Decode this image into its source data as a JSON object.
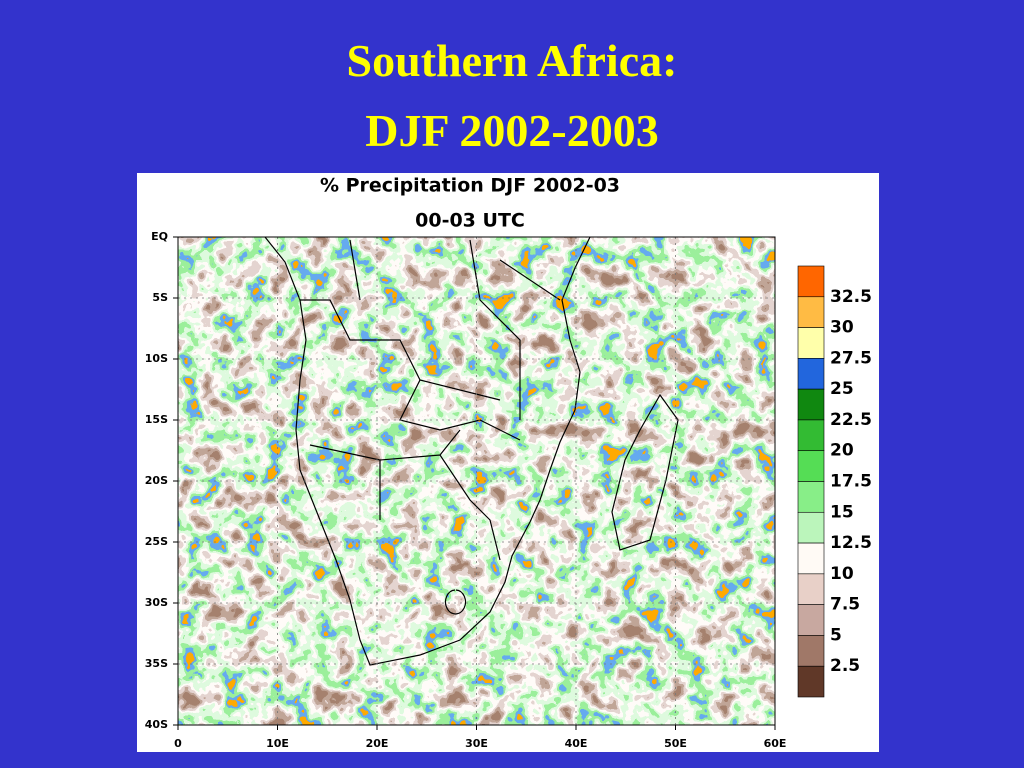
{
  "title": {
    "line1": "Southern Africa:",
    "line2": "DJF 2002-2003"
  },
  "map": {
    "title_lines": [
      "% Precipitation DJF 2002-03",
      "00-03 UTC"
    ],
    "lat_labels": [
      "EQ",
      "5S",
      "10S",
      "15S",
      "20S",
      "25S",
      "30S",
      "35S",
      "40S"
    ],
    "lon_labels": [
      "0",
      "10E",
      "20E",
      "30E",
      "40E",
      "50E",
      "60E"
    ],
    "legend": {
      "labels": [
        32.5,
        30,
        27.5,
        25,
        22.5,
        20,
        17.5,
        15,
        12.5,
        10,
        7.5,
        5,
        2.5
      ],
      "colors": [
        "#ff6600",
        "#ffbb44",
        "#ffffaa",
        "#2266dd",
        "#108810",
        "#33bb33",
        "#55dd55",
        "#88ee88",
        "#bbf5bb",
        "#fffaf5",
        "#e8d0c8",
        "#c8a8a0",
        "#a07868",
        "#603828"
      ]
    }
  }
}
